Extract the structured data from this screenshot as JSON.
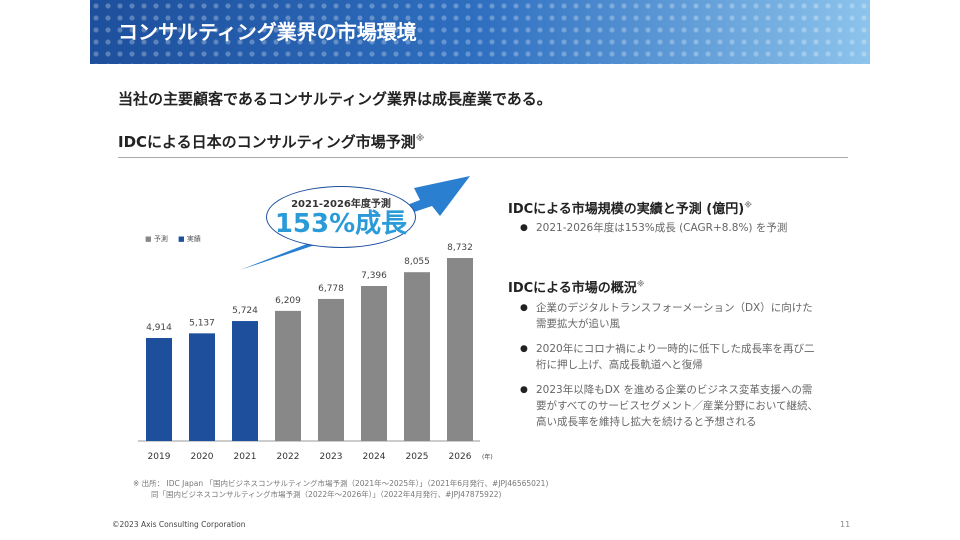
{
  "header": {
    "title": "コンサルティング業界の市場環境"
  },
  "lead": "当社の主要顧客であるコンサルティング業界は成長産業である。",
  "section_title": "IDCによる日本のコンサルティング市場予測",
  "section_note": "※",
  "callout": {
    "line1": "2021-2026年度予測",
    "line2": "153%成長"
  },
  "chart_data": {
    "type": "bar",
    "categories": [
      "2019",
      "2020",
      "2021",
      "2022",
      "2023",
      "2024",
      "2025",
      "2026"
    ],
    "values": [
      4914,
      5137,
      5724,
      6209,
      6778,
      7396,
      8055,
      8732
    ],
    "value_labels": [
      "4,914",
      "5,137",
      "5,724",
      "6,209",
      "6,778",
      "7,396",
      "8,055",
      "8,732"
    ],
    "kind": [
      "実績",
      "実績",
      "実績",
      "予測",
      "予測",
      "予測",
      "予測",
      "予測"
    ],
    "legend": [
      {
        "name": "予測",
        "color": "#888888"
      },
      {
        "name": "実績",
        "color": "#1d4f9c"
      }
    ],
    "xunit": "(年)",
    "ylim": [
      0,
      8732
    ],
    "grid": false,
    "legend_position": "top-left"
  },
  "right": {
    "h1": "IDCによる市場規模の実績と予測 (億円)",
    "h1_note": "※",
    "b1": "2021-2026年度は153%成長 (CAGR+8.8%) を予測",
    "h2": "IDCによる市場の概況",
    "h2_note": "※",
    "bullets": [
      "企業のデジタルトランスフォーメーション（DX）に向けた需要拡大が追い風",
      "2020年にコロナ禍により一時的に低下した成長率を再び二桁に押し上げ、高成長軌道へと復帰",
      "2023年以降もDX を進める企業のビジネス変革支援への需要がすべてのサービスセグメント／産業分野において継続、高い成長率を維持し拡大を続けると予想される"
    ]
  },
  "source": {
    "line1": "※ 出所： IDC Japan 「国内ビジネスコンサルティング市場予測（2021年～2025年）」（2021年6月発行、#JPJ46565021)",
    "line2": "同「国内ビジネスコンサルティング市場予測（2022年～2026年）」（2022年4月発行、#JPJ47875922)"
  },
  "footer": {
    "copyright": "©2023 Axis Consulting Corporation",
    "page": "11"
  }
}
